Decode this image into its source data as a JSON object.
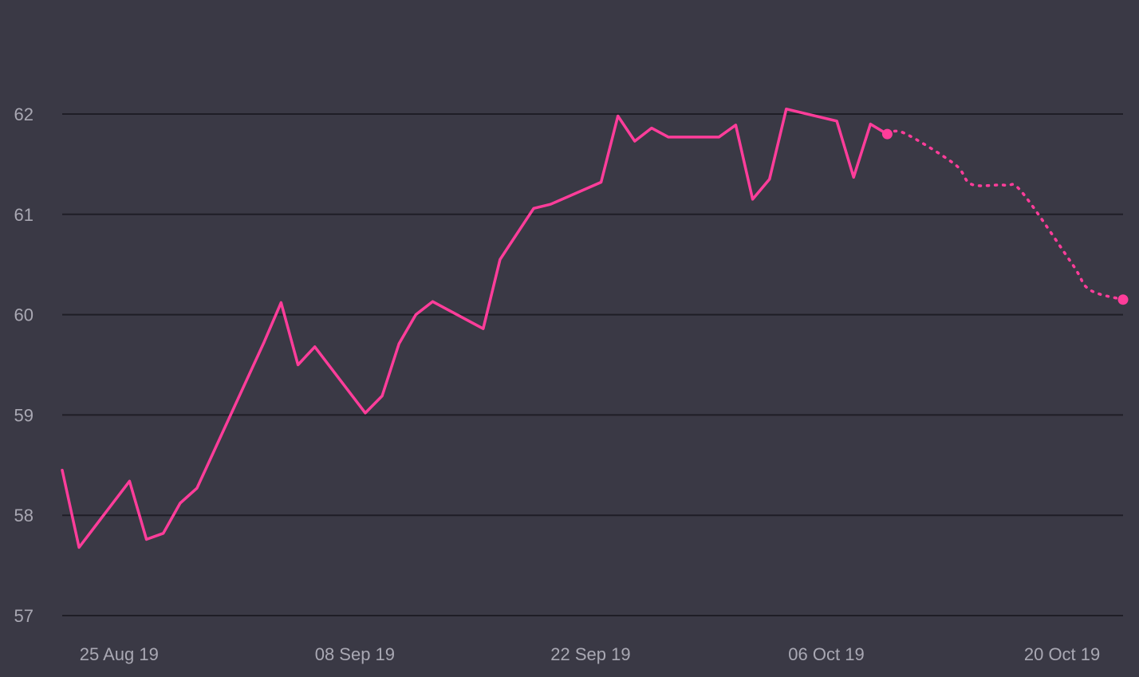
{
  "colors": {
    "background": "#3a3945",
    "line": "#ff3d9a",
    "grid": "#1f1e26",
    "tick_text": "#a9a8b3"
  },
  "chart_data": {
    "type": "line",
    "title": "",
    "xlabel": "",
    "ylabel": "",
    "ylim": [
      57,
      62
    ],
    "yticks": [
      57,
      58,
      59,
      60,
      61,
      62
    ],
    "xlim": [
      "2019-08-22",
      "2019-10-24"
    ],
    "xticks": [
      {
        "date": "2019-08-25",
        "label": "25 Aug 19"
      },
      {
        "date": "2019-09-08",
        "label": "08 Sep 19"
      },
      {
        "date": "2019-09-22",
        "label": "22 Sep 19"
      },
      {
        "date": "2019-10-06",
        "label": "06 Oct 19"
      },
      {
        "date": "2019-10-20",
        "label": "20 Oct 19"
      }
    ],
    "grid": true,
    "legend": "none",
    "series": [
      {
        "style": "solid",
        "points": [
          [
            "2019-08-22",
            58.45
          ],
          [
            "2019-08-23",
            57.68
          ],
          [
            "2019-08-26",
            58.34
          ],
          [
            "2019-08-27",
            57.76
          ],
          [
            "2019-08-28",
            57.82
          ],
          [
            "2019-08-29",
            58.12
          ],
          [
            "2019-08-30",
            58.27
          ],
          [
            "2019-09-03",
            59.73
          ],
          [
            "2019-09-04",
            60.12
          ],
          [
            "2019-09-05",
            59.5
          ],
          [
            "2019-09-06",
            59.68
          ],
          [
            "2019-09-09",
            59.02
          ],
          [
            "2019-09-10",
            59.19
          ],
          [
            "2019-09-11",
            59.71
          ],
          [
            "2019-09-12",
            60.0
          ],
          [
            "2019-09-13",
            60.13
          ],
          [
            "2019-09-16",
            59.86
          ],
          [
            "2019-09-17",
            60.55
          ],
          [
            "2019-09-19",
            61.06
          ],
          [
            "2019-09-20",
            61.1
          ],
          [
            "2019-09-23",
            61.32
          ],
          [
            "2019-09-24",
            61.98
          ],
          [
            "2019-09-25",
            61.73
          ],
          [
            "2019-09-26",
            61.86
          ],
          [
            "2019-09-27",
            61.77
          ],
          [
            "2019-09-30",
            61.77
          ],
          [
            "2019-10-01",
            61.89
          ],
          [
            "2019-10-02",
            61.15
          ],
          [
            "2019-10-03",
            61.35
          ],
          [
            "2019-10-04",
            62.05
          ],
          [
            "2019-10-07",
            61.93
          ],
          [
            "2019-10-08",
            61.37
          ],
          [
            "2019-10-09",
            61.9
          ],
          [
            "2019-10-10",
            61.8
          ]
        ]
      },
      {
        "style": "dotted",
        "points": [
          [
            "2019-10-10",
            61.8
          ],
          [
            "2019-10-11",
            61.81
          ],
          [
            "2019-10-14",
            61.5
          ],
          [
            "2019-10-15",
            61.3
          ],
          [
            "2019-10-17",
            61.29
          ],
          [
            "2019-10-18",
            61.22
          ],
          [
            "2019-10-21",
            60.5
          ],
          [
            "2019-10-22",
            60.25
          ],
          [
            "2019-10-24",
            60.15
          ]
        ]
      }
    ],
    "markers": [
      [
        "2019-10-10",
        61.8
      ],
      [
        "2019-10-24",
        60.15
      ]
    ]
  }
}
